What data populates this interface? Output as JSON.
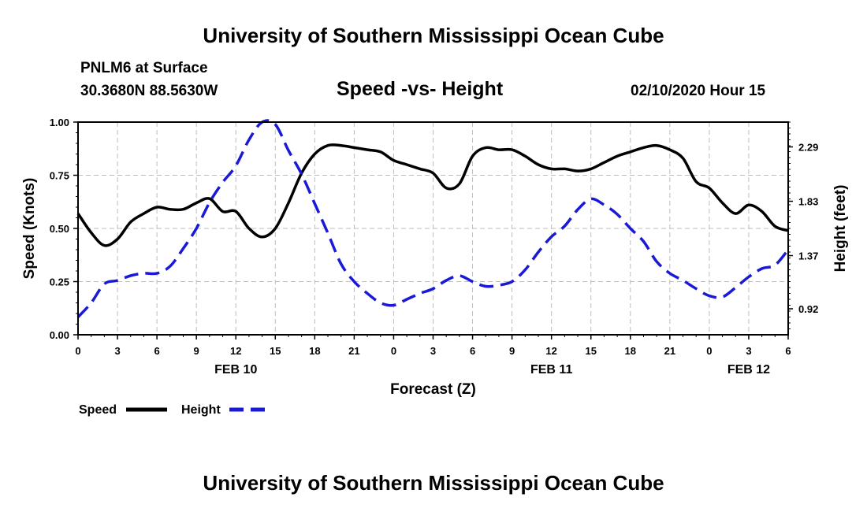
{
  "header": {
    "title": "University of Southern Mississippi Ocean Cube",
    "station": "PNLM6 at Surface",
    "coords": "30.3680N 88.5630W",
    "chart_title": "Speed -vs- Height",
    "timestamp": "02/10/2020 Hour 15"
  },
  "footer": {
    "title": "University of Southern Mississippi Ocean Cube"
  },
  "colors": {
    "speed": "#000000",
    "height": "#1a1ad6",
    "grid": "#bdbdbd"
  },
  "chart_data": {
    "type": "line",
    "title": "Speed -vs- Height",
    "xlabel": "Forecast (Z)",
    "ylabel": "Speed (Knots)",
    "y2label": "Height (feet)",
    "x_range": [
      0,
      54
    ],
    "ylim": [
      0,
      1.0
    ],
    "y2lim": [
      0.7,
      2.5
    ],
    "x_ticks": [
      0,
      3,
      6,
      9,
      12,
      15,
      18,
      21,
      24,
      27,
      30,
      33,
      36,
      39,
      42,
      45,
      48,
      51,
      54
    ],
    "x_tick_labels": [
      "0",
      "3",
      "6",
      "9",
      "12",
      "15",
      "18",
      "21",
      "0",
      "3",
      "6",
      "9",
      "12",
      "15",
      "18",
      "21",
      "0",
      "3",
      "6"
    ],
    "y_ticks": [
      0,
      0.25,
      0.5,
      0.75,
      1.0
    ],
    "y_tick_labels": [
      "0.00",
      "0.25",
      "0.50",
      "0.75",
      "1.00"
    ],
    "y2_ticks": [
      0.92,
      1.37,
      1.83,
      2.29
    ],
    "y2_tick_labels": [
      "0.92",
      "1.37",
      "1.83",
      "2.29"
    ],
    "day_labels": [
      {
        "x": 12,
        "label": "FEB 10"
      },
      {
        "x": 36,
        "label": "FEB 11"
      },
      {
        "x": 51,
        "label": "FEB 12"
      }
    ],
    "grid": true,
    "legend_position": "bottom-left",
    "series": [
      {
        "name": "Speed",
        "axis": "left",
        "style": "solid",
        "x": [
          0,
          1,
          2,
          3,
          4,
          5,
          6,
          7,
          8,
          9,
          10,
          11,
          12,
          13,
          14,
          15,
          16,
          17,
          18,
          19,
          20,
          21,
          22,
          23,
          24,
          25,
          26,
          27,
          28,
          29,
          30,
          31,
          32,
          33,
          34,
          35,
          36,
          37,
          38,
          39,
          40,
          41,
          42,
          43,
          44,
          45,
          46,
          47,
          48,
          49,
          50,
          51,
          52,
          53,
          54
        ],
        "values": [
          0.57,
          0.48,
          0.42,
          0.45,
          0.53,
          0.57,
          0.6,
          0.59,
          0.59,
          0.62,
          0.64,
          0.58,
          0.58,
          0.5,
          0.46,
          0.5,
          0.62,
          0.76,
          0.85,
          0.89,
          0.89,
          0.88,
          0.87,
          0.86,
          0.82,
          0.8,
          0.78,
          0.76,
          0.69,
          0.71,
          0.84,
          0.88,
          0.87,
          0.87,
          0.84,
          0.8,
          0.78,
          0.78,
          0.77,
          0.78,
          0.81,
          0.84,
          0.86,
          0.88,
          0.89,
          0.87,
          0.83,
          0.72,
          0.69,
          0.62,
          0.57,
          0.61,
          0.58,
          0.51,
          0.49
        ]
      },
      {
        "name": "Height",
        "axis": "right",
        "style": "dashed",
        "x": [
          0,
          1,
          2,
          3,
          4,
          5,
          6,
          7,
          8,
          9,
          10,
          11,
          12,
          13,
          14,
          15,
          16,
          17,
          18,
          19,
          20,
          21,
          22,
          23,
          24,
          25,
          26,
          27,
          28,
          29,
          30,
          31,
          32,
          33,
          34,
          35,
          36,
          37,
          38,
          39,
          40,
          41,
          42,
          43,
          44,
          45,
          46,
          47,
          48,
          49,
          50,
          51,
          52,
          53,
          54
        ],
        "values": [
          0.85,
          0.97,
          1.13,
          1.16,
          1.2,
          1.22,
          1.22,
          1.28,
          1.43,
          1.6,
          1.82,
          1.99,
          2.13,
          2.35,
          2.53,
          2.48,
          2.26,
          2.06,
          1.81,
          1.56,
          1.3,
          1.15,
          1.05,
          0.97,
          0.95,
          1.0,
          1.05,
          1.09,
          1.16,
          1.2,
          1.15,
          1.11,
          1.12,
          1.15,
          1.25,
          1.4,
          1.53,
          1.62,
          1.76,
          1.85,
          1.8,
          1.72,
          1.6,
          1.49,
          1.32,
          1.22,
          1.16,
          1.09,
          1.03,
          1.02,
          1.1,
          1.19,
          1.26,
          1.29,
          1.42
        ]
      }
    ]
  }
}
